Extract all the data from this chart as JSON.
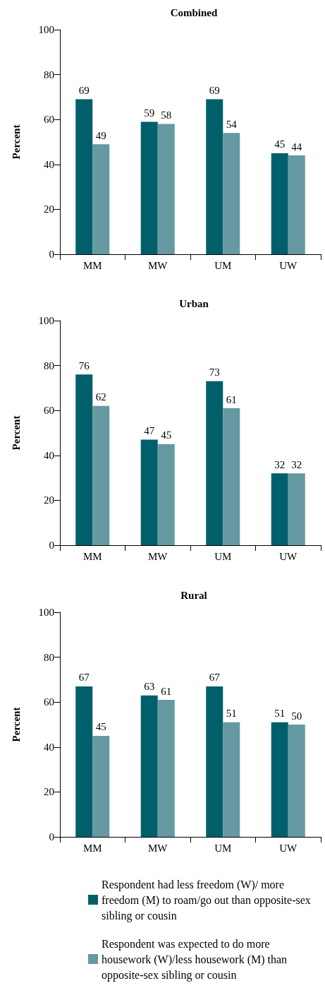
{
  "chart_data": [
    {
      "type": "bar",
      "title": "Combined",
      "ylabel": "Percent",
      "categories": [
        "MM",
        "MW",
        "UM",
        "UW"
      ],
      "series": [
        {
          "color": "#005f6b",
          "values": [
            69,
            59,
            69,
            45
          ]
        },
        {
          "color": "#6699a1",
          "values": [
            49,
            58,
            54,
            44
          ]
        }
      ],
      "ylim": [
        0,
        100
      ],
      "yticks": [
        0,
        20,
        40,
        60,
        80,
        100
      ],
      "grid": false,
      "data_labels": true,
      "legend": false
    },
    {
      "type": "bar",
      "title": "Urban",
      "ylabel": "Percent",
      "categories": [
        "MM",
        "MW",
        "UM",
        "UW"
      ],
      "series": [
        {
          "color": "#005f6b",
          "values": [
            76,
            47,
            73,
            32
          ]
        },
        {
          "color": "#6699a1",
          "values": [
            62,
            45,
            61,
            32
          ]
        }
      ],
      "ylim": [
        0,
        100
      ],
      "yticks": [
        0,
        20,
        40,
        60,
        80,
        100
      ],
      "grid": false,
      "data_labels": true,
      "legend": false
    },
    {
      "type": "bar",
      "title": "Rural",
      "ylabel": "Percent",
      "categories": [
        "MM",
        "MW",
        "UM",
        "UW"
      ],
      "series": [
        {
          "name": "Respondent had less freedom (W)/ more freedom (M) to roam/go out than opposite-sex sibling or cousin",
          "color": "#005f6b",
          "values": [
            67,
            63,
            67,
            51
          ]
        },
        {
          "name": "Respondent was expected to do more housework (W)/less housework (M) than opposite-sex sibling or cousin",
          "color": "#6699a1",
          "values": [
            45,
            61,
            51,
            50
          ]
        }
      ],
      "ylim": [
        0,
        100
      ],
      "yticks": [
        0,
        20,
        40,
        60,
        80,
        100
      ],
      "grid": false,
      "data_labels": true,
      "legend": "bottom"
    }
  ]
}
